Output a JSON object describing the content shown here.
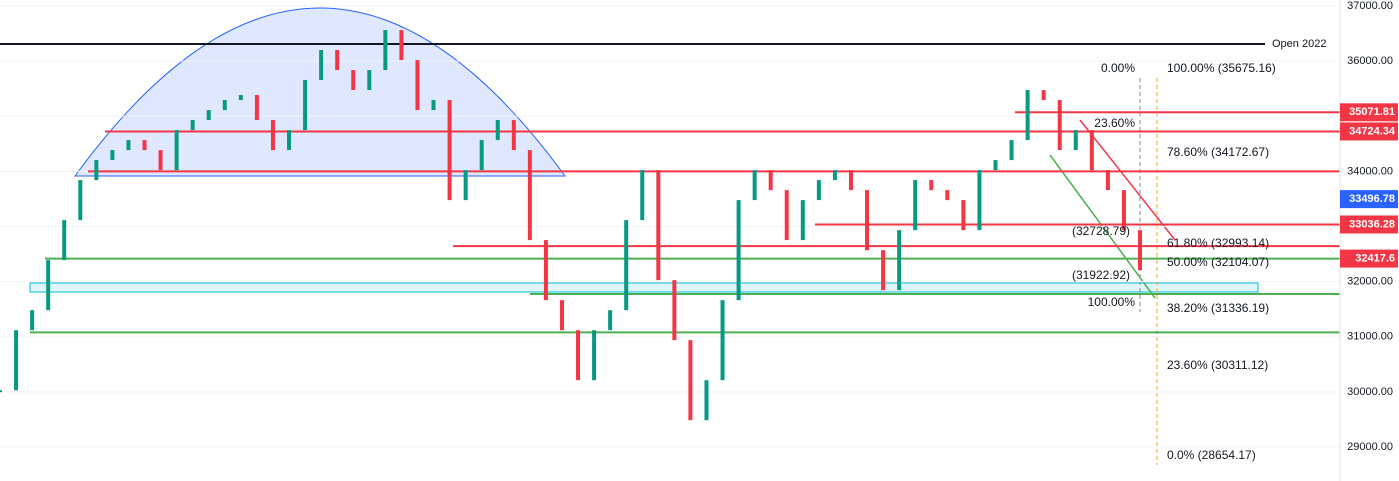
{
  "chart_data": {
    "type": "bars",
    "ylim": [
      28383,
      37109
    ],
    "yticks": [
      {
        "value": 29000,
        "label": "29000.00"
      },
      {
        "value": 30000,
        "label": "30000.00"
      },
      {
        "value": 31000,
        "label": "31000.00"
      },
      {
        "value": 32000,
        "label": "32000.00"
      },
      {
        "value": 33000,
        "label": "33000.00"
      },
      {
        "value": 34000,
        "label": "34000.00"
      },
      {
        "value": 35000,
        "label": "35000.00"
      },
      {
        "value": 36000,
        "label": "36000.00"
      },
      {
        "value": 37000,
        "label": "37000.00"
      }
    ],
    "up_color": "#089981",
    "down_color": "#f23645",
    "values": [
      30030,
      31119,
      31482,
      32390,
      33116,
      33842,
      34205,
      34386,
      34568,
      34386,
      34023,
      34749,
      34931,
      35112,
      35294,
      35385,
      34931,
      34386,
      34749,
      35657,
      36201,
      35838,
      35475,
      35838,
      36564,
      36020,
      35112,
      35294,
      33479,
      34023,
      34568,
      34931,
      34386,
      32753,
      31664,
      31119,
      30212,
      31119,
      31482,
      33116,
      34023,
      32027,
      30938,
      29486,
      30212,
      31664,
      33479,
      34023,
      33660,
      32753,
      33479,
      33842,
      34023,
      33660,
      32571,
      31845,
      32934,
      33842,
      33660,
      33479,
      32934,
      34023,
      34205,
      34568,
      35475,
      35294,
      34386,
      34749,
      34023,
      33660,
      32934,
      32208
    ],
    "lines": [
      {
        "value": 36310,
        "color": "#131722",
        "from": 0
      },
      {
        "value": 35071.81,
        "color": "#f23645",
        "from": 1015
      },
      {
        "value": 34724.34,
        "color": "#f23645",
        "from": 105
      },
      {
        "value": 34000,
        "color": "#f23645",
        "from": 88
      },
      {
        "value": 33036.28,
        "color": "#f23645",
        "from": 815
      },
      {
        "value": 32644,
        "color": "#f23645",
        "from": 453
      },
      {
        "value": 32417.6,
        "color": "#4caf50",
        "from": 45
      },
      {
        "value": 31775,
        "color": "#4caf50",
        "from": 530
      },
      {
        "value": 31080,
        "color": "#4caf50",
        "from": 30
      }
    ],
    "price_labels": [
      {
        "value": 35071.81,
        "color": "#f23645"
      },
      {
        "value": 34724.34,
        "color": "#f23645"
      },
      {
        "value": 33496.78,
        "color": "#2962ff"
      },
      {
        "value": 33036.28,
        "color": "#f23645"
      },
      {
        "value": 32417.6,
        "color": "#f23645"
      }
    ],
    "open_label": "Open 2022",
    "annotations": [
      "0.00%",
      "100.00% (35675.16)",
      "23.60%",
      "78.60% (34172.67)",
      "61.80% (32993.14)",
      "50.00% (32104.07)",
      "(31922.92)",
      "(32728.79)",
      "100.00%",
      "38.20% (31336.19)",
      "23.60% (30311.12)",
      "0.0% (28654.17)"
    ]
  }
}
